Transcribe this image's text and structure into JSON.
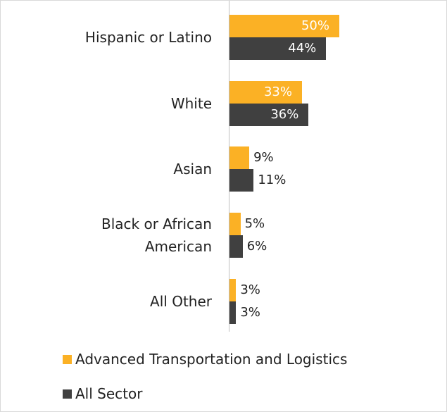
{
  "chart_data": {
    "type": "bar",
    "orientation": "horizontal",
    "categories": [
      "Hispanic or Latino",
      "White",
      "Asian",
      "Black or African American",
      "All Other"
    ],
    "series": [
      {
        "name": "Advanced Transportation and Logistics",
        "color": "#fbb125",
        "values": [
          50,
          33,
          9,
          5,
          3
        ],
        "value_labels": [
          "50%",
          "33%",
          "9%",
          "5%",
          "3%"
        ]
      },
      {
        "name": "All Sector",
        "color": "#404040",
        "values": [
          44,
          36,
          11,
          6,
          3
        ],
        "value_labels": [
          "44%",
          "36%",
          "11%",
          "6%",
          "3%"
        ]
      }
    ],
    "legend": "bottom"
  }
}
